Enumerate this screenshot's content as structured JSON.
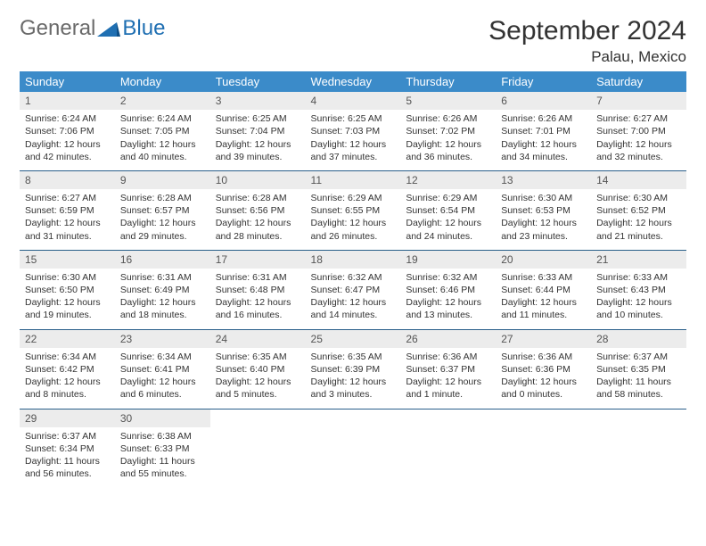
{
  "logo": {
    "text1": "General",
    "text2": "Blue"
  },
  "title": "September 2024",
  "location": "Palau, Mexico",
  "colors": {
    "header_bg": "#3b8bc9",
    "header_text": "#ffffff",
    "daynum_bg": "#ececec",
    "cell_border": "#2a5f8a",
    "logo_blue": "#1f6fb2"
  },
  "weekdays": [
    "Sunday",
    "Monday",
    "Tuesday",
    "Wednesday",
    "Thursday",
    "Friday",
    "Saturday"
  ],
  "weeks": [
    [
      {
        "day": "1",
        "sunrise": "Sunrise: 6:24 AM",
        "sunset": "Sunset: 7:06 PM",
        "daylight": "Daylight: 12 hours and 42 minutes."
      },
      {
        "day": "2",
        "sunrise": "Sunrise: 6:24 AM",
        "sunset": "Sunset: 7:05 PM",
        "daylight": "Daylight: 12 hours and 40 minutes."
      },
      {
        "day": "3",
        "sunrise": "Sunrise: 6:25 AM",
        "sunset": "Sunset: 7:04 PM",
        "daylight": "Daylight: 12 hours and 39 minutes."
      },
      {
        "day": "4",
        "sunrise": "Sunrise: 6:25 AM",
        "sunset": "Sunset: 7:03 PM",
        "daylight": "Daylight: 12 hours and 37 minutes."
      },
      {
        "day": "5",
        "sunrise": "Sunrise: 6:26 AM",
        "sunset": "Sunset: 7:02 PM",
        "daylight": "Daylight: 12 hours and 36 minutes."
      },
      {
        "day": "6",
        "sunrise": "Sunrise: 6:26 AM",
        "sunset": "Sunset: 7:01 PM",
        "daylight": "Daylight: 12 hours and 34 minutes."
      },
      {
        "day": "7",
        "sunrise": "Sunrise: 6:27 AM",
        "sunset": "Sunset: 7:00 PM",
        "daylight": "Daylight: 12 hours and 32 minutes."
      }
    ],
    [
      {
        "day": "8",
        "sunrise": "Sunrise: 6:27 AM",
        "sunset": "Sunset: 6:59 PM",
        "daylight": "Daylight: 12 hours and 31 minutes."
      },
      {
        "day": "9",
        "sunrise": "Sunrise: 6:28 AM",
        "sunset": "Sunset: 6:57 PM",
        "daylight": "Daylight: 12 hours and 29 minutes."
      },
      {
        "day": "10",
        "sunrise": "Sunrise: 6:28 AM",
        "sunset": "Sunset: 6:56 PM",
        "daylight": "Daylight: 12 hours and 28 minutes."
      },
      {
        "day": "11",
        "sunrise": "Sunrise: 6:29 AM",
        "sunset": "Sunset: 6:55 PM",
        "daylight": "Daylight: 12 hours and 26 minutes."
      },
      {
        "day": "12",
        "sunrise": "Sunrise: 6:29 AM",
        "sunset": "Sunset: 6:54 PM",
        "daylight": "Daylight: 12 hours and 24 minutes."
      },
      {
        "day": "13",
        "sunrise": "Sunrise: 6:30 AM",
        "sunset": "Sunset: 6:53 PM",
        "daylight": "Daylight: 12 hours and 23 minutes."
      },
      {
        "day": "14",
        "sunrise": "Sunrise: 6:30 AM",
        "sunset": "Sunset: 6:52 PM",
        "daylight": "Daylight: 12 hours and 21 minutes."
      }
    ],
    [
      {
        "day": "15",
        "sunrise": "Sunrise: 6:30 AM",
        "sunset": "Sunset: 6:50 PM",
        "daylight": "Daylight: 12 hours and 19 minutes."
      },
      {
        "day": "16",
        "sunrise": "Sunrise: 6:31 AM",
        "sunset": "Sunset: 6:49 PM",
        "daylight": "Daylight: 12 hours and 18 minutes."
      },
      {
        "day": "17",
        "sunrise": "Sunrise: 6:31 AM",
        "sunset": "Sunset: 6:48 PM",
        "daylight": "Daylight: 12 hours and 16 minutes."
      },
      {
        "day": "18",
        "sunrise": "Sunrise: 6:32 AM",
        "sunset": "Sunset: 6:47 PM",
        "daylight": "Daylight: 12 hours and 14 minutes."
      },
      {
        "day": "19",
        "sunrise": "Sunrise: 6:32 AM",
        "sunset": "Sunset: 6:46 PM",
        "daylight": "Daylight: 12 hours and 13 minutes."
      },
      {
        "day": "20",
        "sunrise": "Sunrise: 6:33 AM",
        "sunset": "Sunset: 6:44 PM",
        "daylight": "Daylight: 12 hours and 11 minutes."
      },
      {
        "day": "21",
        "sunrise": "Sunrise: 6:33 AM",
        "sunset": "Sunset: 6:43 PM",
        "daylight": "Daylight: 12 hours and 10 minutes."
      }
    ],
    [
      {
        "day": "22",
        "sunrise": "Sunrise: 6:34 AM",
        "sunset": "Sunset: 6:42 PM",
        "daylight": "Daylight: 12 hours and 8 minutes."
      },
      {
        "day": "23",
        "sunrise": "Sunrise: 6:34 AM",
        "sunset": "Sunset: 6:41 PM",
        "daylight": "Daylight: 12 hours and 6 minutes."
      },
      {
        "day": "24",
        "sunrise": "Sunrise: 6:35 AM",
        "sunset": "Sunset: 6:40 PM",
        "daylight": "Daylight: 12 hours and 5 minutes."
      },
      {
        "day": "25",
        "sunrise": "Sunrise: 6:35 AM",
        "sunset": "Sunset: 6:39 PM",
        "daylight": "Daylight: 12 hours and 3 minutes."
      },
      {
        "day": "26",
        "sunrise": "Sunrise: 6:36 AM",
        "sunset": "Sunset: 6:37 PM",
        "daylight": "Daylight: 12 hours and 1 minute."
      },
      {
        "day": "27",
        "sunrise": "Sunrise: 6:36 AM",
        "sunset": "Sunset: 6:36 PM",
        "daylight": "Daylight: 12 hours and 0 minutes."
      },
      {
        "day": "28",
        "sunrise": "Sunrise: 6:37 AM",
        "sunset": "Sunset: 6:35 PM",
        "daylight": "Daylight: 11 hours and 58 minutes."
      }
    ],
    [
      {
        "day": "29",
        "sunrise": "Sunrise: 6:37 AM",
        "sunset": "Sunset: 6:34 PM",
        "daylight": "Daylight: 11 hours and 56 minutes."
      },
      {
        "day": "30",
        "sunrise": "Sunrise: 6:38 AM",
        "sunset": "Sunset: 6:33 PM",
        "daylight": "Daylight: 11 hours and 55 minutes."
      },
      null,
      null,
      null,
      null,
      null
    ]
  ]
}
